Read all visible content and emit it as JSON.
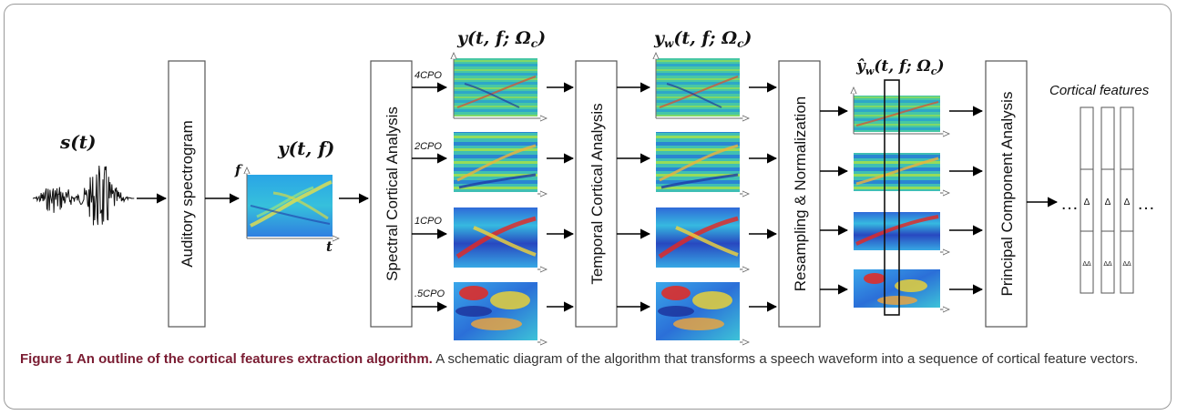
{
  "figure": {
    "title": "Figure 1 An outline of the cortical features extraction algorithm.",
    "description": "A schematic diagram of the algorithm that transforms a speech waveform into a sequence of cortical feature vectors."
  },
  "signal": {
    "label": "s(t)"
  },
  "stages": {
    "auditory_spectrogram": "Auditory spectrogram",
    "spectral_cortical_analysis": "Spectral Cortical Analysis",
    "temporal_cortical_analysis": "Temporal Cortical Analysis",
    "resampling_normalization": "Resampling & Normalization",
    "pca": "Principal Component Analysis"
  },
  "spectrogram": {
    "label": "y(t, f)",
    "axis_f": "f",
    "axis_t": "t"
  },
  "column_labels": {
    "spectral": "y(t, f; Ω",
    "spectral_sub": "c",
    "temporal": "y",
    "temporal_w": "w",
    "temporal_rest": "(t, f; Ω",
    "temporal_sub": "c",
    "resampled": "ŷ",
    "resampled_w": "w",
    "resampled_rest": "(t, f; Ω",
    "resampled_sub": "c",
    "close": ")"
  },
  "scales": [
    "4CPO",
    "2CPO",
    "1CPO",
    ".5CPO"
  ],
  "features": {
    "title": "Cortical features",
    "delta": "Δ",
    "delta_delta": "ΔΔ",
    "ellipsis": "…"
  },
  "colors": {
    "arrow": "#000000",
    "box_border": "#555555",
    "caption_title": "#7a1c32",
    "caption_text": "#333333",
    "heatmap_low": "#1c3fb8",
    "heatmap_mid": "#39c9c0",
    "heatmap_high": "#d8231c"
  }
}
